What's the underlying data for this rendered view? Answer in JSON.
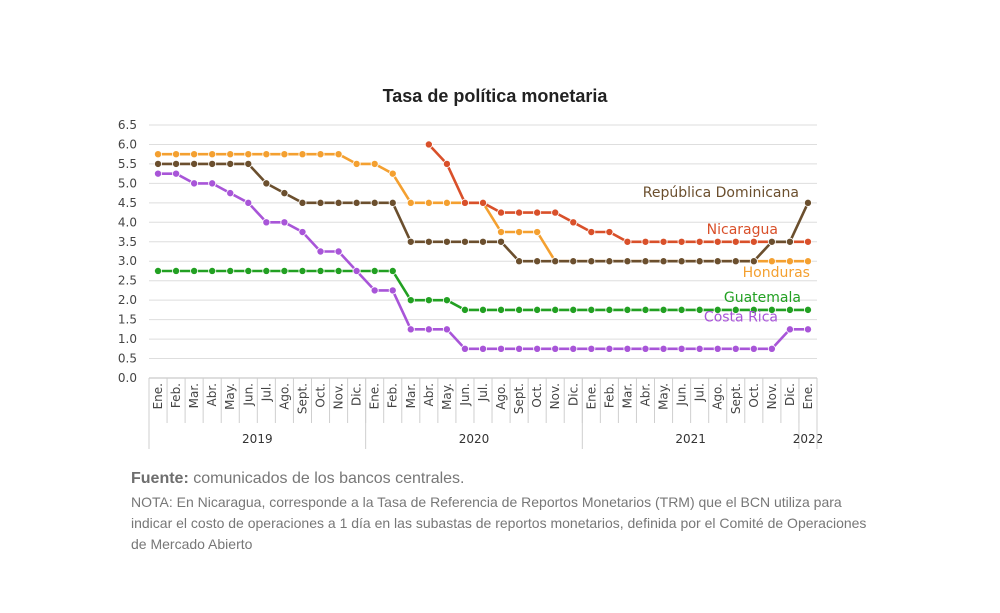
{
  "chart_data": {
    "type": "line",
    "title": "Tasa de política monetaria",
    "ylim": [
      0,
      6.5
    ],
    "yticks": [
      "0.0",
      "0.5",
      "1.0",
      "1.5",
      "2.0",
      "2.5",
      "3.0",
      "3.5",
      "4.0",
      "4.5",
      "5.0",
      "5.5",
      "6.0",
      "6.5"
    ],
    "grid": true,
    "legend": "inline labels",
    "categories": [
      "Ene.",
      "Feb.",
      "Mar.",
      "Abr.",
      "May.",
      "Jun.",
      "Jul.",
      "Ago.",
      "Sept.",
      "Oct.",
      "Nov.",
      "Dic.",
      "Ene.",
      "Feb.",
      "Mar.",
      "Abr.",
      "May.",
      "Jun.",
      "Jul.",
      "Ago.",
      "Sept.",
      "Oct.",
      "Nov.",
      "Dic.",
      "Ene.",
      "Feb.",
      "Mar.",
      "Abr.",
      "May.",
      "Jun.",
      "Jul.",
      "Ago.",
      "Sept.",
      "Oct.",
      "Nov.",
      "Dic.",
      "Ene."
    ],
    "years": [
      {
        "label": "2019",
        "start": 0,
        "end": 11
      },
      {
        "label": "2020",
        "start": 12,
        "end": 23
      },
      {
        "label": "2021",
        "start": 24,
        "end": 35
      },
      {
        "label": "2022",
        "start": 36,
        "end": 36
      }
    ],
    "series": [
      {
        "name": "Honduras",
        "color": "#F4A030",
        "label_pos": "below-right",
        "values": [
          5.75,
          5.75,
          5.75,
          5.75,
          5.75,
          5.75,
          5.75,
          5.75,
          5.75,
          5.75,
          5.75,
          5.5,
          5.5,
          5.25,
          4.5,
          4.5,
          4.5,
          4.5,
          4.5,
          3.75,
          3.75,
          3.75,
          3.0,
          3.0,
          3.0,
          3.0,
          3.0,
          3.0,
          3.0,
          3.0,
          3.0,
          3.0,
          3.0,
          3.0,
          3.0,
          3.0,
          3.0
        ]
      },
      {
        "name": "Nicaragua",
        "color": "#D9502A",
        "label_pos": "above-right",
        "values": [
          null,
          null,
          null,
          null,
          null,
          null,
          null,
          null,
          null,
          null,
          null,
          null,
          null,
          null,
          null,
          6.0,
          5.5,
          4.5,
          4.5,
          4.25,
          4.25,
          4.25,
          4.25,
          4.0,
          3.75,
          3.75,
          3.5,
          3.5,
          3.5,
          3.5,
          3.5,
          3.5,
          3.5,
          3.5,
          3.5,
          3.5,
          3.5
        ]
      },
      {
        "name": "República Dominicana",
        "color": "#6B4F2E",
        "label_pos": "above-right",
        "values": [
          5.5,
          5.5,
          5.5,
          5.5,
          5.5,
          5.5,
          5.0,
          4.75,
          4.5,
          4.5,
          4.5,
          4.5,
          4.5,
          4.5,
          3.5,
          3.5,
          3.5,
          3.5,
          3.5,
          3.5,
          3.0,
          3.0,
          3.0,
          3.0,
          3.0,
          3.0,
          3.0,
          3.0,
          3.0,
          3.0,
          3.0,
          3.0,
          3.0,
          3.0,
          3.5,
          3.5,
          4.5
        ]
      },
      {
        "name": "Guatemala",
        "color": "#22A022",
        "label_pos": "above-right",
        "values": [
          2.75,
          2.75,
          2.75,
          2.75,
          2.75,
          2.75,
          2.75,
          2.75,
          2.75,
          2.75,
          2.75,
          2.75,
          2.75,
          2.75,
          2.0,
          2.0,
          2.0,
          1.75,
          1.75,
          1.75,
          1.75,
          1.75,
          1.75,
          1.75,
          1.75,
          1.75,
          1.75,
          1.75,
          1.75,
          1.75,
          1.75,
          1.75,
          1.75,
          1.75,
          1.75,
          1.75,
          1.75
        ]
      },
      {
        "name": "Costa Rica",
        "color": "#A855D8",
        "label_pos": "above-left",
        "values": [
          5.25,
          5.25,
          5.0,
          5.0,
          4.75,
          4.5,
          4.0,
          4.0,
          3.75,
          3.25,
          3.25,
          2.75,
          2.25,
          2.25,
          1.25,
          1.25,
          1.25,
          0.75,
          0.75,
          0.75,
          0.75,
          0.75,
          0.75,
          0.75,
          0.75,
          0.75,
          0.75,
          0.75,
          0.75,
          0.75,
          0.75,
          0.75,
          0.75,
          0.75,
          0.75,
          1.25,
          1.25
        ]
      }
    ]
  },
  "source": {
    "label": "Fuente:",
    "text": " comunicados de los bancos centrales.",
    "note": "NOTA: En Nicaragua, corresponde a la Tasa de Referencia de Reportos Monetarios (TRM) que el BCN utiliza para indicar el costo de operaciones a 1 día en las subastas de reportos monetarios, definida por el Comité de Operaciones de Mercado Abierto"
  }
}
